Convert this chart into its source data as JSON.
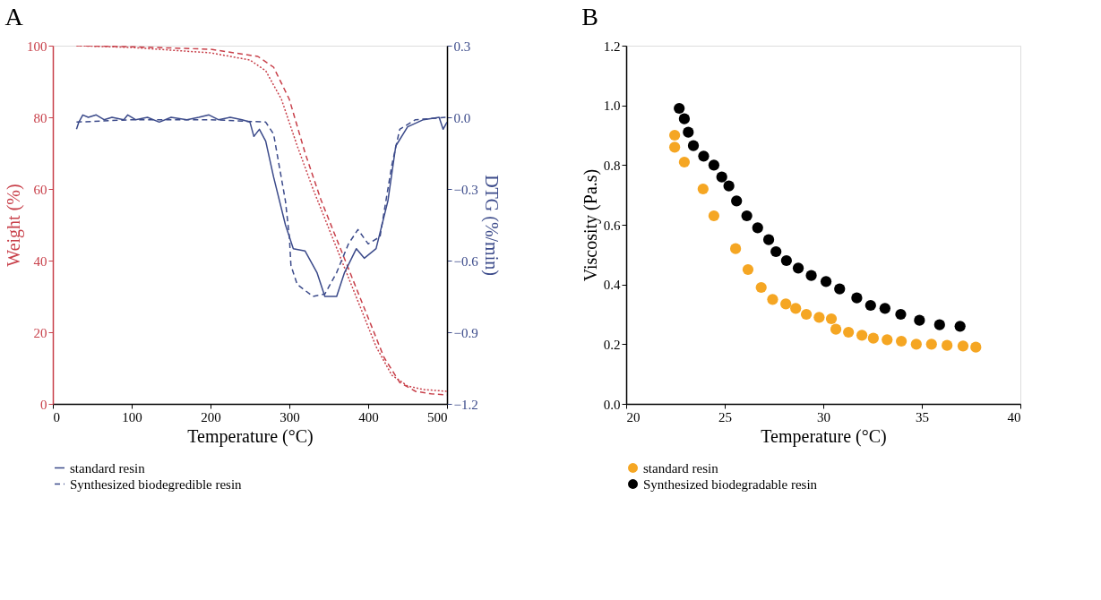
{
  "chart_data": [
    {
      "type": "line",
      "title": "A",
      "xlabel": "Temperature (°C)",
      "ylabel": "Weight (%)",
      "y2label": "DTG (%/min)",
      "xlim": [
        0,
        500
      ],
      "xticks": [
        0,
        100,
        200,
        300,
        400,
        500
      ],
      "ylim": [
        0,
        100
      ],
      "yticks": [
        0,
        20,
        40,
        60,
        80,
        100
      ],
      "y2lim": [
        -1.2,
        0.3
      ],
      "y2ticks": [
        {
          "value": 0.3,
          "label": "0.3"
        },
        {
          "value": 0.0,
          "label": "0.0"
        },
        {
          "value": -0.3,
          "label": "−0.3"
        },
        {
          "value": -0.6,
          "label": "−0.6"
        },
        {
          "value": -0.9,
          "label": "−0.9"
        },
        {
          "value": -1.2,
          "label": "−1.2"
        }
      ],
      "grid": false,
      "legend": "bottom",
      "series": [
        {
          "color": "#c8404a",
          "line_style": "dotted",
          "x": [
            30,
            100,
            200,
            250,
            270,
            290,
            310,
            330,
            350,
            370,
            390,
            410,
            430,
            450,
            470,
            500
          ],
          "values": [
            100,
            99.5,
            98,
            96,
            93,
            85,
            72,
            60,
            49,
            38,
            27,
            16,
            8,
            5,
            4,
            3.5
          ]
        },
        {
          "color": "#c8404a",
          "line_style": "dashed",
          "x": [
            30,
            100,
            200,
            260,
            280,
            300,
            320,
            340,
            360,
            380,
            400,
            420,
            440,
            460,
            480,
            500
          ],
          "values": [
            100,
            99.7,
            99,
            97,
            94,
            85,
            70,
            57,
            46,
            35,
            24,
            13,
            6,
            3.5,
            2.8,
            2.5
          ]
        },
        {
          "name": "standard resin",
          "axis": "y2",
          "color": "#3b4a8a",
          "line_style": "solid",
          "x": [
            30,
            33,
            38,
            45,
            55,
            65,
            75,
            90,
            95,
            105,
            120,
            135,
            150,
            170,
            185,
            198,
            210,
            225,
            240,
            250,
            255,
            262,
            270,
            280,
            295,
            305,
            320,
            335,
            345,
            360,
            370,
            385,
            395,
            410,
            425,
            435,
            450,
            470,
            490,
            495,
            500
          ],
          "values": [
            -0.05,
            -0.02,
            0.01,
            0.0,
            0.01,
            -0.01,
            0.0,
            -0.01,
            0.01,
            -0.01,
            0.0,
            -0.02,
            0.0,
            -0.01,
            0.0,
            0.01,
            -0.01,
            0.0,
            -0.01,
            -0.02,
            -0.08,
            -0.05,
            -0.1,
            -0.25,
            -0.45,
            -0.55,
            -0.56,
            -0.65,
            -0.75,
            -0.75,
            -0.65,
            -0.55,
            -0.59,
            -0.55,
            -0.35,
            -0.12,
            -0.04,
            -0.01,
            0.0,
            -0.05,
            -0.02
          ]
        },
        {
          "name": "Synthesized biodegredible resin",
          "axis": "y2",
          "color": "#3b4a8a",
          "line_style": "dashed",
          "x": [
            30,
            100,
            200,
            270,
            280,
            295,
            300,
            302,
            310,
            330,
            345,
            360,
            375,
            387,
            400,
            415,
            430,
            440,
            460,
            500
          ],
          "values": [
            -0.02,
            -0.01,
            -0.01,
            -0.02,
            -0.07,
            -0.35,
            -0.5,
            -0.62,
            -0.7,
            -0.75,
            -0.74,
            -0.65,
            -0.53,
            -0.47,
            -0.53,
            -0.5,
            -0.2,
            -0.05,
            -0.01,
            0.0
          ]
        }
      ]
    },
    {
      "type": "scatter",
      "title": "B",
      "xlabel": "Temperature (°C)",
      "ylabel": "Viscosity (Pa.s)",
      "xlim": [
        20,
        40
      ],
      "xticks": [
        20,
        25,
        30,
        35,
        40
      ],
      "ylim": [
        0,
        1.2
      ],
      "yticks": [
        {
          "value": 0,
          "label": "0.0"
        },
        {
          "value": 0.2,
          "label": "0.2"
        },
        {
          "value": 0.4,
          "label": "0.4"
        },
        {
          "value": 0.6,
          "label": "0.6"
        },
        {
          "value": 0.8,
          "label": "0.8"
        },
        {
          "value": 1.0,
          "label": "1.0"
        },
        {
          "value": 1.2,
          "label": "1.2"
        }
      ],
      "grid": false,
      "legend": "bottom",
      "marker": "circle",
      "series": [
        {
          "name": "standard resin",
          "color": "#f5a623",
          "x": [
            22.46,
            22.46,
            22.95,
            23.9,
            24.45,
            25.55,
            26.18,
            26.85,
            27.43,
            28.1,
            28.6,
            29.14,
            29.79,
            30.41,
            30.64,
            31.28,
            31.96,
            32.54,
            33.24,
            33.96,
            34.72,
            35.49,
            36.28,
            37.09,
            37.74
          ],
          "values": [
            0.9,
            0.86,
            0.81,
            0.72,
            0.63,
            0.52,
            0.45,
            0.39,
            0.35,
            0.335,
            0.32,
            0.3,
            0.29,
            0.285,
            0.25,
            0.24,
            0.23,
            0.22,
            0.215,
            0.21,
            0.2,
            0.2,
            0.196,
            0.194,
            0.19
          ]
        },
        {
          "name": "Synthesized biodegradable resin",
          "color": "#000000",
          "x": [
            22.69,
            22.95,
            23.15,
            23.41,
            23.93,
            24.45,
            24.85,
            25.21,
            25.6,
            26.12,
            26.67,
            27.23,
            27.6,
            28.13,
            28.73,
            29.39,
            30.14,
            30.83,
            31.7,
            32.4,
            33.13,
            33.93,
            34.88,
            35.9,
            36.94
          ],
          "values": [
            0.99,
            0.955,
            0.91,
            0.865,
            0.83,
            0.8,
            0.76,
            0.73,
            0.68,
            0.63,
            0.59,
            0.55,
            0.51,
            0.48,
            0.455,
            0.43,
            0.41,
            0.385,
            0.355,
            0.33,
            0.32,
            0.3,
            0.28,
            0.265,
            0.26
          ]
        }
      ]
    }
  ]
}
